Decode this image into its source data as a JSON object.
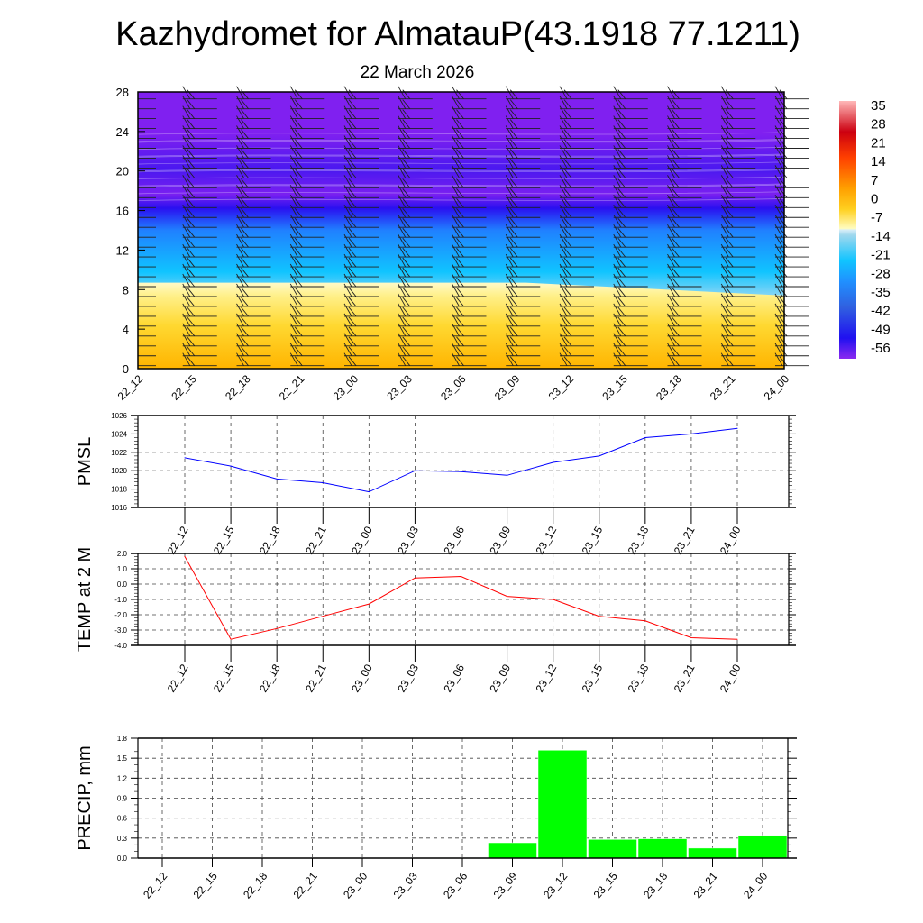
{
  "title": "Kazhydromet for AlmatauP(43.1918 77.1211)",
  "subtitle": "22 March 2026",
  "chart_data": [
    {
      "type": "heatmap",
      "name": "temperature-height-section",
      "x_tick_labels": [
        "22_12",
        "22_15",
        "22_18",
        "22_21",
        "23_00",
        "23_03",
        "23_06",
        "23_09",
        "23_12",
        "23_15",
        "23_18",
        "23_21",
        "24_00"
      ],
      "y_ticks": [
        0,
        4,
        8,
        12,
        16,
        20,
        24,
        28
      ],
      "ylim": [
        0,
        28
      ],
      "colorbar_labels": [
        "35",
        "28",
        "21",
        "14",
        "7",
        "0",
        "-7",
        "-14",
        "-21",
        "-28",
        "-35",
        "-42",
        "-49",
        "-56"
      ],
      "colors": {
        "purple": "#8020f0",
        "deep_blue": "#2a10f0",
        "blue": "#2080ff",
        "cyan": "#10c4ff",
        "pale_blue": "#c8e8f6",
        "pale_yellow": "#fffac0",
        "yellow": "#ffe040",
        "orange": "#ffb400"
      }
    },
    {
      "type": "line",
      "name": "pmsl",
      "ylabel": "PMSL",
      "x": [
        "22_12",
        "22_15",
        "22_18",
        "22_21",
        "23_00",
        "23_03",
        "23_06",
        "23_09",
        "23_12",
        "23_15",
        "23_18",
        "23_21",
        "24_00"
      ],
      "values": [
        1021.4,
        1020.5,
        1019.1,
        1018.7,
        1017.7,
        1020.0,
        1019.9,
        1019.5,
        1020.9,
        1021.6,
        1023.6,
        1024.0,
        1024.6
      ],
      "ylim": [
        1016,
        1026
      ],
      "y_tick_labels": [
        "1016",
        "1018",
        "1020",
        "1022",
        "1024",
        "1026"
      ],
      "color": "#0000ff"
    },
    {
      "type": "line",
      "name": "temp-2m",
      "ylabel": "TEMP at 2 M",
      "x": [
        "22_12",
        "22_15",
        "22_18",
        "22_21",
        "23_00",
        "23_03",
        "23_06",
        "23_09",
        "23_12",
        "23_15",
        "23_18",
        "23_21",
        "24_00"
      ],
      "values": [
        1.8,
        -3.6,
        -2.9,
        -2.1,
        -1.3,
        0.4,
        0.5,
        -0.8,
        -1.0,
        -2.1,
        -2.4,
        -3.5,
        -3.6
      ],
      "ylim": [
        -4,
        2
      ],
      "y_tick_labels": [
        "-4.0",
        "-3.0",
        "-2.0",
        "-1.0",
        "0.0",
        "1.0",
        "2.0"
      ],
      "color": "#ff0000"
    },
    {
      "type": "bar",
      "name": "precip",
      "ylabel": "PRECIP, mm",
      "categories": [
        "22_12",
        "22_15",
        "22_18",
        "22_21",
        "23_00",
        "23_03",
        "23_06",
        "23_09",
        "23_12",
        "23_15",
        "23_18",
        "23_21",
        "24_00"
      ],
      "values": [
        0,
        0,
        0,
        0,
        0,
        0,
        0.01,
        0.23,
        1.62,
        0.28,
        0.29,
        0.15,
        0.34
      ],
      "ylim": [
        0,
        1.8
      ],
      "y_tick_labels": [
        "0.0",
        "0.3",
        "0.6",
        "0.9",
        "1.2",
        "1.5",
        "1.8"
      ],
      "color": "#00ff00"
    }
  ]
}
